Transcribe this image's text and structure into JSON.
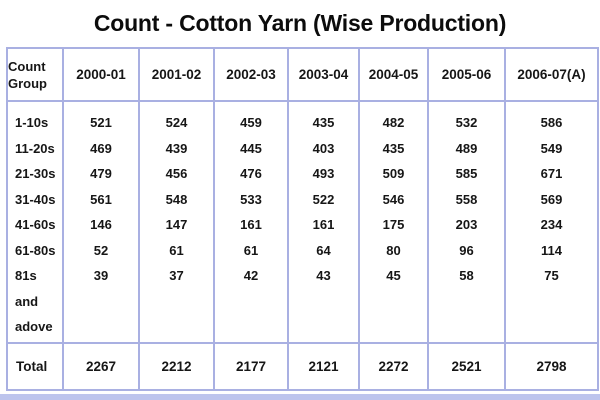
{
  "title": "Count - Cotton Yarn (Wise Production)",
  "chart_data": {
    "type": "table",
    "title": "Count - Cotton Yarn (Wise Production)",
    "row_header": "Count Group",
    "columns": [
      "2000-01",
      "2001-02",
      "2002-03",
      "2003-04",
      "2004-05",
      "2005-06",
      "2006-07(A)"
    ],
    "rows": [
      {
        "label": "1-10s",
        "values": [
          "521",
          "524",
          "459",
          "435",
          "482",
          "532",
          "586"
        ]
      },
      {
        "label": "11-20s",
        "values": [
          "469",
          "439",
          "445",
          "403",
          "435",
          "489",
          "549"
        ]
      },
      {
        "label": "21-30s",
        "values": [
          "479",
          "456",
          "476",
          "493",
          "509",
          "585",
          "671"
        ]
      },
      {
        "label": "31-40s",
        "values": [
          "561",
          "548",
          "533",
          "522",
          "546",
          "558",
          "569"
        ]
      },
      {
        "label": "41-60s",
        "values": [
          "146",
          "147",
          "161",
          "161",
          "175",
          "203",
          "234"
        ]
      },
      {
        "label": "61-80s",
        "values": [
          "52",
          "61",
          "61",
          "64",
          "80",
          "96",
          "114"
        ]
      },
      {
        "label": "81s and adove",
        "values": [
          "39",
          "37",
          "42",
          "43",
          "45",
          "58",
          "75"
        ]
      }
    ],
    "total": {
      "label": "Total",
      "values": [
        "2267",
        "2212",
        "2177",
        "2121",
        "2272",
        "2521",
        "2798"
      ]
    }
  },
  "colors": {
    "border": "#a9b0e2",
    "bottom_band": "#bdc4ed",
    "text": "#131313",
    "background": "#ffffff"
  }
}
